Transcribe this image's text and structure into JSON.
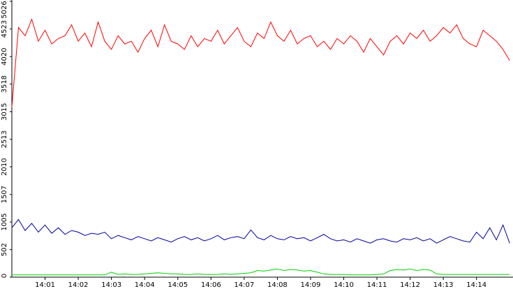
{
  "chart_data": {
    "type": "line",
    "categories": [
      null,
      null,
      null,
      null,
      null,
      "14:01",
      null,
      null,
      null,
      null,
      "14:02",
      null,
      null,
      null,
      null,
      "14:03",
      null,
      null,
      null,
      null,
      "14:04",
      null,
      null,
      null,
      null,
      "14:05",
      null,
      null,
      null,
      null,
      "14:06",
      null,
      null,
      null,
      null,
      "14:07",
      null,
      null,
      null,
      null,
      "14:08",
      null,
      null,
      null,
      null,
      "14:09",
      null,
      null,
      null,
      null,
      "14:10",
      null,
      null,
      null,
      null,
      "14:11",
      null,
      null,
      null,
      null,
      "14:12",
      null,
      null,
      null,
      null,
      "14:13",
      null,
      null,
      null,
      null,
      "14:14",
      null,
      null,
      null,
      null,
      null
    ],
    "ylim": [
      0,
      5026
    ],
    "yticks": [
      0,
      502,
      1005,
      1507,
      2010,
      2513,
      3015,
      3518,
      4020,
      4523,
      5026
    ],
    "series": [
      {
        "color": "#ff0000",
        "values": [
          3100,
          4550,
          4400,
          4700,
          4300,
          4500,
          4250,
          4350,
          4400,
          4600,
          4300,
          4450,
          4200,
          4650,
          4300,
          4150,
          4400,
          4250,
          4300,
          4100,
          4350,
          4500,
          4200,
          4600,
          4300,
          4250,
          4150,
          4400,
          4200,
          4350,
          4300,
          4500,
          4250,
          4400,
          4550,
          4300,
          4200,
          4450,
          4350,
          4650,
          4400,
          4300,
          4500,
          4250,
          4350,
          4400,
          4200,
          4300,
          4150,
          4350,
          4250,
          4400,
          4300,
          4100,
          4350,
          4200,
          4050,
          4300,
          4400,
          4250,
          4450,
          4350,
          4500,
          4300,
          4400,
          4550,
          4450,
          4600,
          4350,
          4250,
          4200,
          4500,
          4400,
          4300,
          4150,
          3950
        ]
      },
      {
        "color": "#0000a0",
        "values": [
          900,
          1050,
          850,
          980,
          820,
          950,
          800,
          900,
          780,
          850,
          820,
          760,
          800,
          780,
          820,
          700,
          760,
          720,
          680,
          740,
          700,
          660,
          720,
          680,
          640,
          700,
          740,
          680,
          720,
          660,
          700,
          760,
          680,
          720,
          740,
          700,
          860,
          720,
          680,
          760,
          700,
          680,
          740,
          700,
          720,
          660,
          720,
          780,
          700,
          660,
          680,
          640,
          700,
          660,
          620,
          680,
          700,
          660,
          640,
          700,
          680,
          720,
          660,
          700,
          620,
          680,
          740,
          700,
          660,
          640,
          820,
          700,
          900,
          680,
          950,
          620
        ]
      },
      {
        "color": "#00d000",
        "values": [
          40,
          40,
          40,
          40,
          40,
          40,
          40,
          40,
          40,
          40,
          40,
          40,
          40,
          40,
          40,
          90,
          50,
          60,
          50,
          50,
          60,
          70,
          80,
          70,
          60,
          60,
          50,
          50,
          60,
          50,
          50,
          50,
          60,
          50,
          60,
          70,
          80,
          120,
          110,
          130,
          150,
          120,
          140,
          130,
          110,
          120,
          90,
          60,
          50,
          50,
          50,
          40,
          40,
          40,
          40,
          50,
          60,
          120,
          140,
          130,
          150,
          120,
          140,
          130,
          60,
          50,
          50,
          50,
          50,
          50,
          50,
          50,
          50,
          50,
          50,
          50
        ]
      }
    ]
  }
}
